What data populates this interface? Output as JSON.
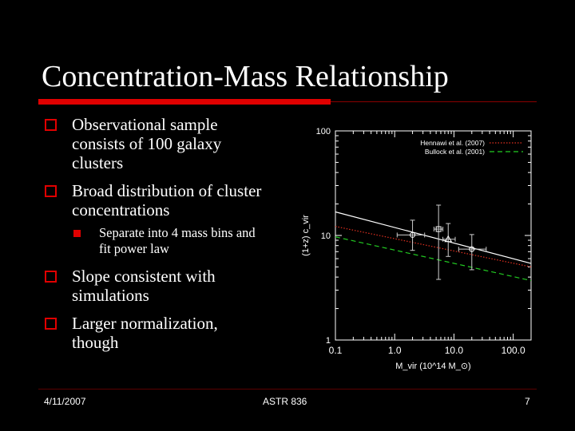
{
  "slide": {
    "title": "Concentration-Mass Relationship",
    "bullets": [
      {
        "text": "Observational sample consists of 100 galaxy clusters"
      },
      {
        "text": "Broad distribution of cluster concentrations"
      },
      {
        "text": "Slope consistent with simulations"
      },
      {
        "text": "Larger normalization, though"
      }
    ],
    "sub_bullet": "Separate into 4 mass bins and fit power law",
    "footer": {
      "date": "4/11/2007",
      "course": "ASTR 836",
      "page": "7"
    }
  },
  "colors": {
    "accent": "#e00000",
    "background": "#000000",
    "text": "#ffffff"
  },
  "chart_data": {
    "type": "scatter",
    "xscale": "log",
    "yscale": "log",
    "xlim": [
      0.1,
      200
    ],
    "ylim": [
      1,
      100
    ],
    "xticks": [
      "0.1",
      "1.0",
      "10.0",
      "100.0"
    ],
    "yticks": [
      "1",
      "10",
      "100"
    ],
    "xlabel": "M_vir (10^14 M_⊙)",
    "ylabel": "(1+z) c_vir",
    "legend": [
      "Hennawi et al. (2007)",
      "Bullock et al. (2001)"
    ],
    "legend_position": "top-right",
    "points": [
      {
        "x": 2.0,
        "y": 10.1,
        "xerr": [
          1.1,
          3.2
        ],
        "yerr": [
          7.2,
          14.0
        ],
        "marker": "circle"
      },
      {
        "x": 5.5,
        "y": 11.5,
        "xerr": [
          4.6,
          6.5
        ],
        "yerr": [
          3.8,
          19.5
        ],
        "marker": "square"
      },
      {
        "x": 8.0,
        "y": 9.2,
        "xerr": [
          6.5,
          10.5
        ],
        "yerr": [
          6.3,
          13.0
        ],
        "marker": "triangle"
      },
      {
        "x": 20.0,
        "y": 7.4,
        "xerr": [
          12.0,
          35.0
        ],
        "yerr": [
          4.7,
          10.2
        ],
        "marker": "circle"
      }
    ],
    "lines": [
      {
        "style": "solid",
        "color": "#ffffff",
        "x": [
          0.1,
          200
        ],
        "y": [
          16.8,
          5.4
        ]
      },
      {
        "name": "Hennawi et al. (2007)",
        "style": "dotted",
        "color": "#e03020",
        "x": [
          0.1,
          200
        ],
        "y": [
          12.2,
          5.0
        ]
      },
      {
        "name": "Bullock et al. (2001)",
        "style": "dashed",
        "color": "#22cc22",
        "x": [
          0.1,
          200
        ],
        "y": [
          9.7,
          3.7
        ]
      }
    ]
  }
}
